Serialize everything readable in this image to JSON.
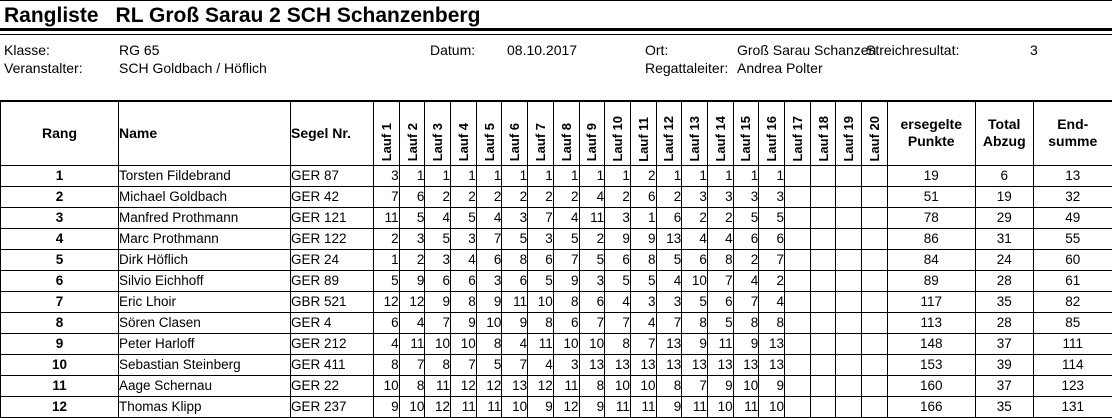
{
  "page": {
    "title_left": "Rangliste",
    "title_right": "RL Groß Sarau 2 SCH Schanzenberg"
  },
  "info": {
    "klasse_label": "Klasse:",
    "klasse_value": "RG 65",
    "veranstalter_label": "Veranstalter:",
    "veranstalter_value": "SCH Goldbach / Höflich",
    "datum_label": "Datum:",
    "datum_value": "08.10.2017",
    "ort_label": "Ort:",
    "ort_value": "Groß Sarau Schanzen",
    "streichresultat_label": "Streichresultat:",
    "streichresultat_value": "3",
    "regattaleiter_label": "Regattaleiter:",
    "regattaleiter_value": "Andrea Polter"
  },
  "table": {
    "headers": {
      "rang": "Rang",
      "name": "Name",
      "segel": "Segel Nr.",
      "punkte_line1": "ersegelte",
      "punkte_line2": "Punkte",
      "abzug_line1": "Total",
      "abzug_line2": "Abzug",
      "endsumme_line1": "End-",
      "endsumme_line2": "summe"
    },
    "lauf_headers": [
      "Lauf 1",
      "Lauf 2",
      "Lauf 3",
      "Lauf 4",
      "Lauf 5",
      "Lauf 6",
      "Lauf 7",
      "Lauf 8",
      "Lauf 9",
      "Lauf 10",
      "Lauf 11",
      "Lauf 12",
      "Lauf 13",
      "Lauf 14",
      "Lauf 15",
      "Lauf 16",
      "Lauf 17",
      "Lauf 18",
      "Lauf 19",
      "Lauf 20"
    ],
    "rows": [
      {
        "rang": "1",
        "name": "Torsten Fildebrand",
        "segel": "GER 87",
        "laufe": [
          "3",
          "1",
          "1",
          "1",
          "1",
          "1",
          "1",
          "1",
          "1",
          "1",
          "2",
          "1",
          "1",
          "1",
          "1",
          "1",
          "",
          "",
          "",
          ""
        ],
        "punkte": "19",
        "abzug": "6",
        "endsumme": "13"
      },
      {
        "rang": "2",
        "name": "Michael Goldbach",
        "segel": "GER 42",
        "laufe": [
          "7",
          "6",
          "2",
          "2",
          "2",
          "2",
          "2",
          "2",
          "4",
          "2",
          "6",
          "2",
          "3",
          "3",
          "3",
          "3",
          "",
          "",
          "",
          ""
        ],
        "punkte": "51",
        "abzug": "19",
        "endsumme": "32"
      },
      {
        "rang": "3",
        "name": "Manfred Prothmann",
        "segel": "GER 121",
        "laufe": [
          "11",
          "5",
          "4",
          "5",
          "4",
          "3",
          "7",
          "4",
          "11",
          "3",
          "1",
          "6",
          "2",
          "2",
          "5",
          "5",
          "",
          "",
          "",
          ""
        ],
        "punkte": "78",
        "abzug": "29",
        "endsumme": "49"
      },
      {
        "rang": "4",
        "name": "Marc Prothmann",
        "segel": "GER 122",
        "laufe": [
          "2",
          "3",
          "5",
          "3",
          "7",
          "5",
          "3",
          "5",
          "2",
          "9",
          "9",
          "13",
          "4",
          "4",
          "6",
          "6",
          "",
          "",
          "",
          ""
        ],
        "punkte": "86",
        "abzug": "31",
        "endsumme": "55"
      },
      {
        "rang": "5",
        "name": "Dirk Höflich",
        "segel": "GER 24",
        "laufe": [
          "1",
          "2",
          "3",
          "4",
          "6",
          "8",
          "6",
          "7",
          "5",
          "6",
          "8",
          "5",
          "6",
          "8",
          "2",
          "7",
          "",
          "",
          "",
          ""
        ],
        "punkte": "84",
        "abzug": "24",
        "endsumme": "60"
      },
      {
        "rang": "6",
        "name": "Silvio Eichhoff",
        "segel": "GER 89",
        "laufe": [
          "5",
          "9",
          "6",
          "6",
          "3",
          "6",
          "5",
          "9",
          "3",
          "5",
          "5",
          "4",
          "10",
          "7",
          "4",
          "2",
          "",
          "",
          "",
          ""
        ],
        "punkte": "89",
        "abzug": "28",
        "endsumme": "61"
      },
      {
        "rang": "7",
        "name": "Eric Lhoir",
        "segel": "GBR 521",
        "laufe": [
          "12",
          "12",
          "9",
          "8",
          "9",
          "11",
          "10",
          "8",
          "6",
          "4",
          "3",
          "3",
          "5",
          "6",
          "7",
          "4",
          "",
          "",
          "",
          ""
        ],
        "punkte": "117",
        "abzug": "35",
        "endsumme": "82"
      },
      {
        "rang": "8",
        "name": "Sören Clasen",
        "segel": "GER 4",
        "laufe": [
          "6",
          "4",
          "7",
          "9",
          "10",
          "9",
          "8",
          "6",
          "7",
          "7",
          "4",
          "7",
          "8",
          "5",
          "8",
          "8",
          "",
          "",
          "",
          ""
        ],
        "punkte": "113",
        "abzug": "28",
        "endsumme": "85"
      },
      {
        "rang": "9",
        "name": "Peter Harloff",
        "segel": "GER 212",
        "laufe": [
          "4",
          "11",
          "10",
          "10",
          "8",
          "4",
          "11",
          "10",
          "10",
          "8",
          "7",
          "13",
          "9",
          "11",
          "9",
          "13",
          "",
          "",
          "",
          ""
        ],
        "punkte": "148",
        "abzug": "37",
        "endsumme": "111"
      },
      {
        "rang": "10",
        "name": "Sebastian Steinberg",
        "segel": "GER 411",
        "laufe": [
          "8",
          "7",
          "8",
          "7",
          "5",
          "7",
          "4",
          "3",
          "13",
          "13",
          "13",
          "13",
          "13",
          "13",
          "13",
          "13",
          "",
          "",
          "",
          ""
        ],
        "punkte": "153",
        "abzug": "39",
        "endsumme": "114"
      },
      {
        "rang": "11",
        "name": "Aage Schernau",
        "segel": "GER 22",
        "laufe": [
          "10",
          "8",
          "11",
          "12",
          "12",
          "13",
          "12",
          "11",
          "8",
          "10",
          "10",
          "8",
          "7",
          "9",
          "10",
          "9",
          "",
          "",
          "",
          ""
        ],
        "punkte": "160",
        "abzug": "37",
        "endsumme": "123"
      },
      {
        "rang": "12",
        "name": "Thomas Klipp",
        "segel": "GER 237",
        "laufe": [
          "9",
          "10",
          "12",
          "11",
          "11",
          "10",
          "9",
          "12",
          "9",
          "11",
          "11",
          "9",
          "11",
          "10",
          "11",
          "10",
          "",
          "",
          "",
          ""
        ],
        "punkte": "166",
        "abzug": "35",
        "endsumme": "131"
      }
    ]
  }
}
